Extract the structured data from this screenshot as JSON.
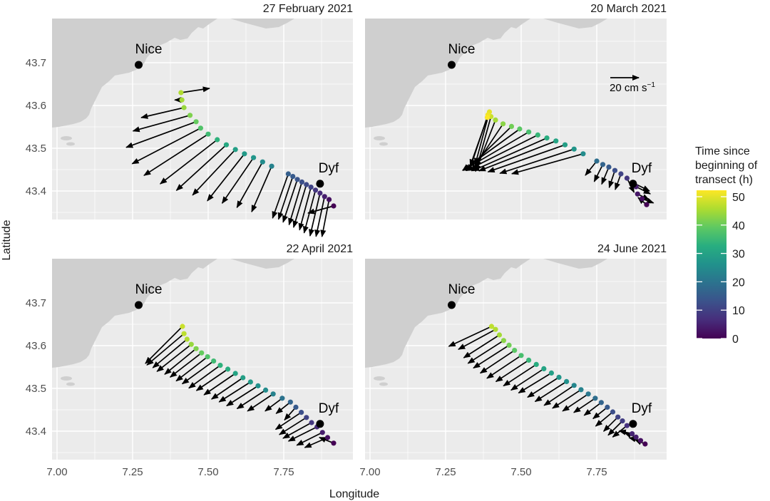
{
  "figure": {
    "xlabel": "Longitude",
    "ylabel": "Latitude",
    "scale_label": "20 cm s",
    "scale_label_sup": "−1",
    "legend": {
      "title_lines": [
        "Time since",
        "beginning of",
        "transect (h)"
      ],
      "ticks": [
        "50",
        "40",
        "30",
        "20",
        "10",
        "0"
      ],
      "range": [
        0,
        50
      ],
      "colormap": "viridis"
    },
    "sites": [
      {
        "name": "Nice",
        "lon": 7.27,
        "lat": 43.695
      },
      {
        "name": "Dyf",
        "lon": 7.87,
        "lat": 43.417
      }
    ],
    "colors": {
      "panel": "#ebebeb",
      "land": "#cfcfcf",
      "points": "viridis"
    }
  },
  "chart_data": [
    {
      "type": "quiver",
      "title": "27 February 2021",
      "xlim": [
        7.0,
        8.0
      ],
      "ylim": [
        43.33,
        43.8
      ],
      "x_ticks": [
        "7.00",
        "7.25",
        "7.50",
        "7.75"
      ],
      "y_ticks": [
        "43.4",
        "43.5",
        "43.6",
        "43.7"
      ],
      "points": [
        {
          "lon": 7.915,
          "lat": 43.365,
          "t": 0,
          "u": -18,
          "v": -5
        },
        {
          "lon": 7.9,
          "lat": 43.38,
          "t": 2,
          "u": -5,
          "v": -26
        },
        {
          "lon": 7.885,
          "lat": 43.387,
          "t": 4,
          "u": -6,
          "v": -28
        },
        {
          "lon": 7.87,
          "lat": 43.395,
          "t": 6,
          "u": -7,
          "v": -30
        },
        {
          "lon": 7.855,
          "lat": 43.402,
          "t": 8,
          "u": -8,
          "v": -30
        },
        {
          "lon": 7.84,
          "lat": 43.409,
          "t": 10,
          "u": -8,
          "v": -30
        },
        {
          "lon": 7.825,
          "lat": 43.415,
          "t": 11,
          "u": -9,
          "v": -30
        },
        {
          "lon": 7.81,
          "lat": 43.421,
          "t": 12,
          "u": -9,
          "v": -30
        },
        {
          "lon": 7.795,
          "lat": 43.427,
          "t": 13,
          "u": -10,
          "v": -30
        },
        {
          "lon": 7.78,
          "lat": 43.434,
          "t": 14,
          "u": -10,
          "v": -30
        },
        {
          "lon": 7.765,
          "lat": 43.44,
          "t": 15,
          "u": -11,
          "v": -31
        },
        {
          "lon": 7.71,
          "lat": 43.458,
          "t": 22,
          "u": -14,
          "v": -32
        },
        {
          "lon": 7.68,
          "lat": 43.468,
          "t": 24,
          "u": -18,
          "v": -32
        },
        {
          "lon": 7.65,
          "lat": 43.478,
          "t": 26,
          "u": -22,
          "v": -32
        },
        {
          "lon": 7.62,
          "lat": 43.487,
          "t": 27,
          "u": -26,
          "v": -33
        },
        {
          "lon": 7.59,
          "lat": 43.497,
          "t": 28,
          "u": -30,
          "v": -32
        },
        {
          "lon": 7.56,
          "lat": 43.508,
          "t": 30,
          "u": -35,
          "v": -32
        },
        {
          "lon": 7.53,
          "lat": 43.52,
          "t": 32,
          "u": -40,
          "v": -31
        },
        {
          "lon": 7.5,
          "lat": 43.533,
          "t": 34,
          "u": -45,
          "v": -29
        },
        {
          "lon": 7.475,
          "lat": 43.547,
          "t": 36,
          "u": -48,
          "v": -25
        },
        {
          "lon": 7.46,
          "lat": 43.562,
          "t": 38,
          "u": -49,
          "v": -18
        },
        {
          "lon": 7.44,
          "lat": 43.577,
          "t": 40,
          "u": -40,
          "v": -11
        },
        {
          "lon": 7.42,
          "lat": 43.595,
          "t": 42,
          "u": -30,
          "v": -7
        },
        {
          "lon": 7.413,
          "lat": 43.613,
          "t": 43,
          "u": -5,
          "v": 0
        },
        {
          "lon": 7.41,
          "lat": 43.63,
          "t": 44,
          "u": 20,
          "v": 3
        }
      ]
    },
    {
      "type": "quiver",
      "title": "20 March 2021",
      "xlim": [
        7.0,
        8.0
      ],
      "ylim": [
        43.33,
        43.8
      ],
      "x_ticks": [
        "7.00",
        "7.25",
        "7.50",
        "7.75"
      ],
      "y_ticks": [
        "43.4",
        "43.5",
        "43.6",
        "43.7"
      ],
      "points": [
        {
          "lon": 7.915,
          "lat": 43.368,
          "t": 0,
          "u": -6,
          "v": 5
        },
        {
          "lon": 7.9,
          "lat": 43.382,
          "t": 2,
          "u": 8,
          "v": -3
        },
        {
          "lon": 7.885,
          "lat": 43.393,
          "t": 3,
          "u": 8,
          "v": -4
        },
        {
          "lon": 7.88,
          "lat": 43.41,
          "t": 4,
          "u": 10,
          "v": -5
        },
        {
          "lon": 7.868,
          "lat": 43.42,
          "t": 6,
          "u": 12,
          "v": -6
        },
        {
          "lon": 7.85,
          "lat": 43.43,
          "t": 8,
          "u": 5,
          "v": -10
        },
        {
          "lon": 7.83,
          "lat": 43.44,
          "t": 10,
          "u": -4,
          "v": -11
        },
        {
          "lon": 7.81,
          "lat": 43.448,
          "t": 12,
          "u": -4,
          "v": -12
        },
        {
          "lon": 7.79,
          "lat": 43.456,
          "t": 14,
          "u": -5,
          "v": -12
        },
        {
          "lon": 7.77,
          "lat": 43.462,
          "t": 16,
          "u": -6,
          "v": -12
        },
        {
          "lon": 7.75,
          "lat": 43.47,
          "t": 18,
          "u": -8,
          "v": -10
        },
        {
          "lon": 7.705,
          "lat": 43.487,
          "t": 24,
          "u": -50,
          "v": -14
        },
        {
          "lon": 7.675,
          "lat": 43.498,
          "t": 26,
          "u": -52,
          "v": -17
        },
        {
          "lon": 7.645,
          "lat": 43.508,
          "t": 28,
          "u": -54,
          "v": -19
        },
        {
          "lon": 7.615,
          "lat": 43.517,
          "t": 29,
          "u": -54,
          "v": -21
        },
        {
          "lon": 7.585,
          "lat": 43.524,
          "t": 31,
          "u": -52,
          "v": -23
        },
        {
          "lon": 7.555,
          "lat": 43.531,
          "t": 33,
          "u": -50,
          "v": -25
        },
        {
          "lon": 7.525,
          "lat": 43.538,
          "t": 35,
          "u": -46,
          "v": -27
        },
        {
          "lon": 7.495,
          "lat": 43.545,
          "t": 37,
          "u": -40,
          "v": -29
        },
        {
          "lon": 7.468,
          "lat": 43.551,
          "t": 39,
          "u": -32,
          "v": -31
        },
        {
          "lon": 7.44,
          "lat": 43.557,
          "t": 41,
          "u": -22,
          "v": -33
        },
        {
          "lon": 7.415,
          "lat": 43.566,
          "t": 43,
          "u": -14,
          "v": -36
        },
        {
          "lon": 7.4,
          "lat": 43.574,
          "t": 46,
          "u": -10,
          "v": -36
        },
        {
          "lon": 7.395,
          "lat": 43.585,
          "t": 48,
          "u": -10,
          "v": -37
        },
        {
          "lon": 7.39,
          "lat": 43.578,
          "t": 49,
          "u": -12,
          "v": -36
        },
        {
          "lon": 7.388,
          "lat": 43.572,
          "t": 50,
          "u": -12,
          "v": -34
        }
      ]
    },
    {
      "type": "quiver",
      "title": "22 April 2021",
      "xlim": [
        7.0,
        8.0
      ],
      "ylim": [
        43.33,
        43.8
      ],
      "x_ticks": [
        "7.00",
        "7.25",
        "7.50",
        "7.75"
      ],
      "y_ticks": [
        "43.4",
        "43.5",
        "43.6",
        "43.7"
      ],
      "points": [
        {
          "lon": 7.915,
          "lat": 43.372,
          "t": 0,
          "u": -10,
          "v": 4
        },
        {
          "lon": 7.895,
          "lat": 43.385,
          "t": 2,
          "u": -16,
          "v": -7
        },
        {
          "lon": 7.878,
          "lat": 43.397,
          "t": 4,
          "u": -18,
          "v": -9
        },
        {
          "lon": 7.86,
          "lat": 43.41,
          "t": 6,
          "u": -20,
          "v": -10
        },
        {
          "lon": 7.842,
          "lat": 43.42,
          "t": 8,
          "u": -20,
          "v": -11
        },
        {
          "lon": 7.825,
          "lat": 43.432,
          "t": 10,
          "u": -19,
          "v": -12
        },
        {
          "lon": 7.808,
          "lat": 43.444,
          "t": 12,
          "u": -18,
          "v": -12
        },
        {
          "lon": 7.79,
          "lat": 43.456,
          "t": 14,
          "u": -8,
          "v": -9
        },
        {
          "lon": 7.772,
          "lat": 43.468,
          "t": 16,
          "u": -10,
          "v": -8
        },
        {
          "lon": 7.745,
          "lat": 43.477,
          "t": 19,
          "u": -12,
          "v": -9
        },
        {
          "lon": 7.715,
          "lat": 43.487,
          "t": 22,
          "u": -18,
          "v": -12
        },
        {
          "lon": 7.69,
          "lat": 43.496,
          "t": 24,
          "u": -20,
          "v": -13
        },
        {
          "lon": 7.665,
          "lat": 43.506,
          "t": 25,
          "u": -22,
          "v": -14
        },
        {
          "lon": 7.64,
          "lat": 43.515,
          "t": 27,
          "u": -22,
          "v": -14
        },
        {
          "lon": 7.615,
          "lat": 43.525,
          "t": 28,
          "u": -22,
          "v": -15
        },
        {
          "lon": 7.59,
          "lat": 43.535,
          "t": 29,
          "u": -22,
          "v": -15
        },
        {
          "lon": 7.565,
          "lat": 43.545,
          "t": 31,
          "u": -22,
          "v": -15
        },
        {
          "lon": 7.54,
          "lat": 43.554,
          "t": 32,
          "u": -22,
          "v": -16
        },
        {
          "lon": 7.518,
          "lat": 43.564,
          "t": 34,
          "u": -22,
          "v": -16
        },
        {
          "lon": 7.498,
          "lat": 43.574,
          "t": 36,
          "u": -22,
          "v": -17
        },
        {
          "lon": 7.478,
          "lat": 43.583,
          "t": 38,
          "u": -22,
          "v": -17
        },
        {
          "lon": 7.46,
          "lat": 43.593,
          "t": 40,
          "u": -22,
          "v": -18
        },
        {
          "lon": 7.444,
          "lat": 43.603,
          "t": 42,
          "u": -24,
          "v": -19
        },
        {
          "lon": 7.43,
          "lat": 43.615,
          "t": 44,
          "u": -24,
          "v": -20
        },
        {
          "lon": 7.42,
          "lat": 43.628,
          "t": 45,
          "u": -26,
          "v": -22
        },
        {
          "lon": 7.415,
          "lat": 43.645,
          "t": 46,
          "u": -26,
          "v": -26
        }
      ]
    },
    {
      "type": "quiver",
      "title": "24 June 2021",
      "xlim": [
        7.0,
        8.0
      ],
      "ylim": [
        43.33,
        43.8
      ],
      "x_ticks": [
        "7.00",
        "7.25",
        "7.50",
        "7.75"
      ],
      "y_ticks": [
        "43.4",
        "43.5",
        "43.6",
        "43.7"
      ],
      "points": [
        {
          "lon": 7.91,
          "lat": 43.37,
          "t": 0,
          "u": -7,
          "v": 3
        },
        {
          "lon": 7.895,
          "lat": 43.378,
          "t": 2,
          "u": -8,
          "v": 2
        },
        {
          "lon": 7.88,
          "lat": 43.386,
          "t": 4,
          "u": -8,
          "v": 3
        },
        {
          "lon": 7.867,
          "lat": 43.394,
          "t": 5,
          "u": -9,
          "v": 2
        },
        {
          "lon": 7.85,
          "lat": 43.413,
          "t": 7,
          "u": -10,
          "v": -8
        },
        {
          "lon": 7.835,
          "lat": 43.424,
          "t": 9,
          "u": -10,
          "v": -10
        },
        {
          "lon": 7.82,
          "lat": 43.433,
          "t": 10,
          "u": -10,
          "v": -10
        },
        {
          "lon": 7.803,
          "lat": 43.445,
          "t": 12,
          "u": -12,
          "v": -10
        },
        {
          "lon": 7.785,
          "lat": 43.456,
          "t": 14,
          "u": -10,
          "v": -8
        },
        {
          "lon": 7.765,
          "lat": 43.467,
          "t": 16,
          "u": -12,
          "v": -9
        },
        {
          "lon": 7.745,
          "lat": 43.477,
          "t": 18,
          "u": -15,
          "v": -10
        },
        {
          "lon": 7.722,
          "lat": 43.487,
          "t": 20,
          "u": -18,
          "v": -12
        },
        {
          "lon": 7.698,
          "lat": 43.497,
          "t": 22,
          "u": -20,
          "v": -13
        },
        {
          "lon": 7.675,
          "lat": 43.507,
          "t": 23,
          "u": -21,
          "v": -14
        },
        {
          "lon": 7.65,
          "lat": 43.516,
          "t": 25,
          "u": -22,
          "v": -14
        },
        {
          "lon": 7.625,
          "lat": 43.526,
          "t": 26,
          "u": -22,
          "v": -14
        },
        {
          "lon": 7.6,
          "lat": 43.536,
          "t": 28,
          "u": -23,
          "v": -14
        },
        {
          "lon": 7.575,
          "lat": 43.546,
          "t": 29,
          "u": -23,
          "v": -15
        },
        {
          "lon": 7.55,
          "lat": 43.556,
          "t": 31,
          "u": -23,
          "v": -15
        },
        {
          "lon": 7.525,
          "lat": 43.566,
          "t": 33,
          "u": -23,
          "v": -15
        },
        {
          "lon": 7.5,
          "lat": 43.577,
          "t": 35,
          "u": -24,
          "v": -16
        },
        {
          "lon": 7.478,
          "lat": 43.589,
          "t": 37,
          "u": -24,
          "v": -16
        },
        {
          "lon": 7.46,
          "lat": 43.601,
          "t": 39,
          "u": -25,
          "v": -16
        },
        {
          "lon": 7.442,
          "lat": 43.612,
          "t": 41,
          "u": -25,
          "v": -16
        },
        {
          "lon": 7.428,
          "lat": 43.625,
          "t": 43,
          "u": -25,
          "v": -16
        },
        {
          "lon": 7.415,
          "lat": 43.638,
          "t": 44,
          "u": -26,
          "v": -14
        },
        {
          "lon": 7.402,
          "lat": 43.645,
          "t": 45,
          "u": -30,
          "v": -14
        }
      ]
    }
  ]
}
